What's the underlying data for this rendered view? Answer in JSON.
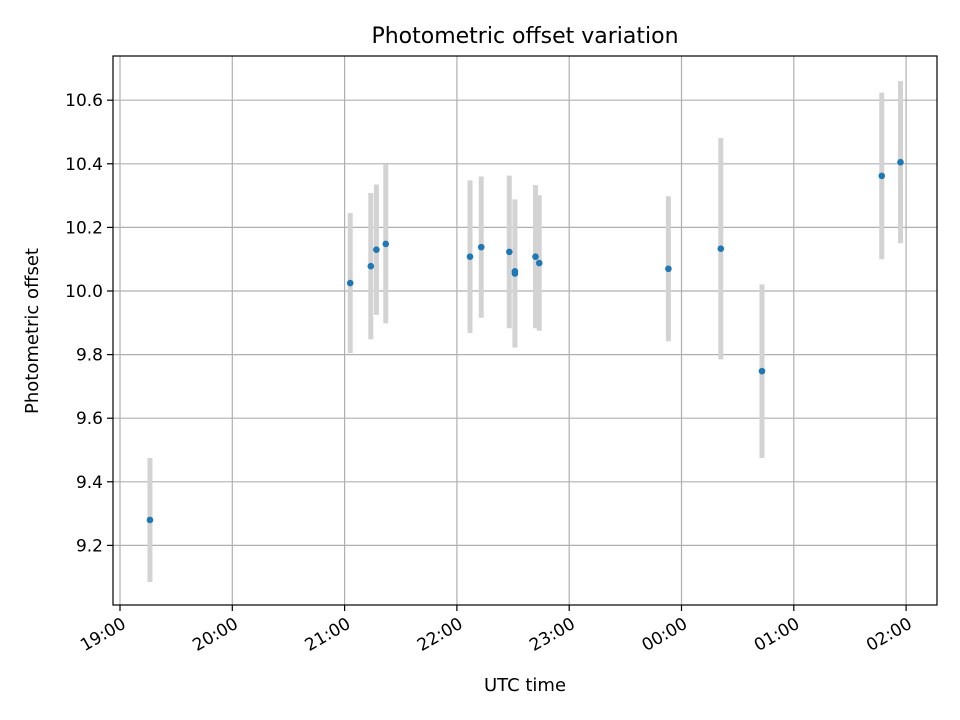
{
  "chart_data": {
    "type": "scatter",
    "title": "Photometric offset variation",
    "xlabel": "UTC time",
    "ylabel": "Photometric offset",
    "grid": true,
    "x_tick_labels": [
      "19:00",
      "20:00",
      "21:00",
      "22:00",
      "23:00",
      "00:00",
      "01:00",
      "02:00"
    ],
    "y_tick_labels": [
      "9.2",
      "9.4",
      "9.6",
      "9.8",
      "10.0",
      "10.2",
      "10.4",
      "10.6"
    ],
    "colors": {
      "point": "#1f77b4",
      "errorbar": "#d3d3d3",
      "grid": "#b0b0b0"
    },
    "points": [
      {
        "x": "19:16",
        "y": 9.28,
        "yerr": 0.195
      },
      {
        "x": "21:03",
        "y": 10.025,
        "yerr": 0.22
      },
      {
        "x": "21:14",
        "y": 10.078,
        "yerr": 0.23
      },
      {
        "x": "21:17",
        "y": 10.13,
        "yerr": 0.205
      },
      {
        "x": "21:22",
        "y": 10.148,
        "yerr": 0.25
      },
      {
        "x": "22:07",
        "y": 10.108,
        "yerr": 0.24
      },
      {
        "x": "22:13",
        "y": 10.138,
        "yerr": 0.222
      },
      {
        "x": "22:28",
        "y": 10.123,
        "yerr": 0.24
      },
      {
        "x": "22:31",
        "y": 10.055,
        "yerr": 0.233
      },
      {
        "x": "22:31",
        "y": 10.062,
        "yerr": 0.03
      },
      {
        "x": "22:42",
        "y": 10.108,
        "yerr": 0.225
      },
      {
        "x": "22:44",
        "y": 10.088,
        "yerr": 0.213
      },
      {
        "x": "23:53",
        "y": 10.07,
        "yerr": 0.228
      },
      {
        "x": "00:21",
        "y": 10.133,
        "yerr": 0.348
      },
      {
        "x": "00:43",
        "y": 9.748,
        "yerr": 0.273
      },
      {
        "x": "01:47",
        "y": 10.362,
        "yerr": 0.262
      },
      {
        "x": "01:57",
        "y": 10.405,
        "yerr": 0.255
      }
    ]
  }
}
